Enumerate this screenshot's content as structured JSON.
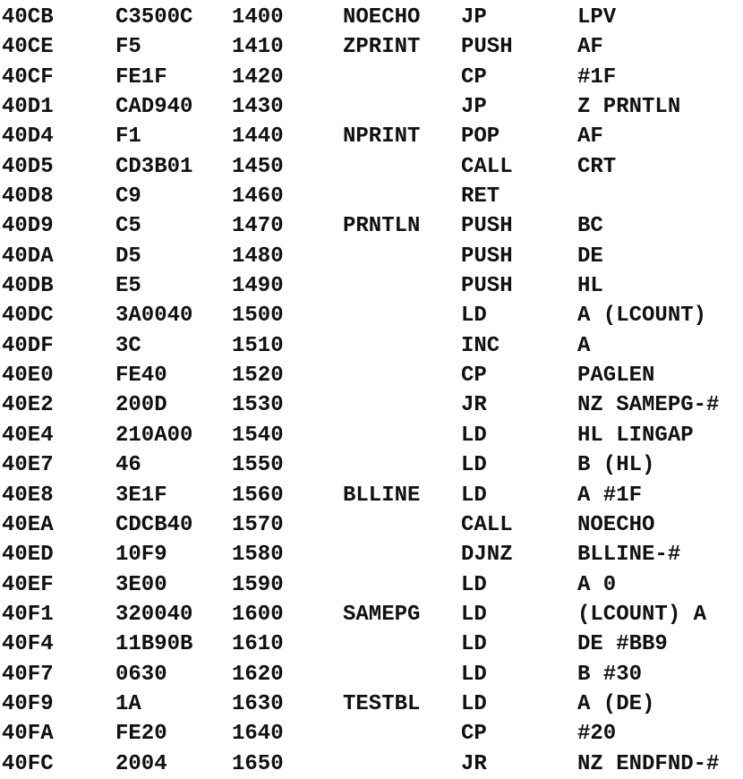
{
  "listing": [
    {
      "addr": "40CB",
      "code": "C3500C",
      "line": "1400",
      "label": "NOECHO",
      "op": "JP",
      "arg": "LPV"
    },
    {
      "addr": "40CE",
      "code": "F5",
      "line": "1410",
      "label": "ZPRINT",
      "op": "PUSH",
      "arg": "AF"
    },
    {
      "addr": "40CF",
      "code": "FE1F",
      "line": "1420",
      "label": "",
      "op": "CP",
      "arg": "#1F"
    },
    {
      "addr": "40D1",
      "code": "CAD940",
      "line": "1430",
      "label": "",
      "op": "JP",
      "arg": "Z PRNTLN"
    },
    {
      "addr": "40D4",
      "code": "F1",
      "line": "1440",
      "label": "NPRINT",
      "op": "POP",
      "arg": "AF"
    },
    {
      "addr": "40D5",
      "code": "CD3B01",
      "line": "1450",
      "label": "",
      "op": "CALL",
      "arg": "CRT"
    },
    {
      "addr": "40D8",
      "code": "C9",
      "line": "1460",
      "label": "",
      "op": "RET",
      "arg": ""
    },
    {
      "addr": "40D9",
      "code": "C5",
      "line": "1470",
      "label": "PRNTLN",
      "op": "PUSH",
      "arg": "BC"
    },
    {
      "addr": "40DA",
      "code": "D5",
      "line": "1480",
      "label": "",
      "op": "PUSH",
      "arg": "DE"
    },
    {
      "addr": "40DB",
      "code": "E5",
      "line": "1490",
      "label": "",
      "op": "PUSH",
      "arg": "HL"
    },
    {
      "addr": "40DC",
      "code": "3A0040",
      "line": "1500",
      "label": "",
      "op": "LD",
      "arg": "A (LCOUNT)"
    },
    {
      "addr": "40DF",
      "code": "3C",
      "line": "1510",
      "label": "",
      "op": "INC",
      "arg": "A"
    },
    {
      "addr": "40E0",
      "code": "FE40",
      "line": "1520",
      "label": "",
      "op": "CP",
      "arg": "PAGLEN"
    },
    {
      "addr": "40E2",
      "code": "200D",
      "line": "1530",
      "label": "",
      "op": "JR",
      "arg": "NZ SAMEPG-#"
    },
    {
      "addr": "40E4",
      "code": "210A00",
      "line": "1540",
      "label": "",
      "op": "LD",
      "arg": "HL LINGAP"
    },
    {
      "addr": "40E7",
      "code": "46",
      "line": "1550",
      "label": "",
      "op": "LD",
      "arg": "B (HL)"
    },
    {
      "addr": "40E8",
      "code": "3E1F",
      "line": "1560",
      "label": "BLLINE",
      "op": "LD",
      "arg": "A #1F"
    },
    {
      "addr": "40EA",
      "code": "CDCB40",
      "line": "1570",
      "label": "",
      "op": "CALL",
      "arg": "NOECHO"
    },
    {
      "addr": "40ED",
      "code": "10F9",
      "line": "1580",
      "label": "",
      "op": "DJNZ",
      "arg": "BLLINE-#"
    },
    {
      "addr": "40EF",
      "code": "3E00",
      "line": "1590",
      "label": "",
      "op": "LD",
      "arg": "A 0"
    },
    {
      "addr": "40F1",
      "code": "320040",
      "line": "1600",
      "label": "SAMEPG",
      "op": "LD",
      "arg": "(LCOUNT) A"
    },
    {
      "addr": "40F4",
      "code": "11B90B",
      "line": "1610",
      "label": "",
      "op": "LD",
      "arg": "DE #BB9"
    },
    {
      "addr": "40F7",
      "code": "0630",
      "line": "1620",
      "label": "",
      "op": "LD",
      "arg": "B #30"
    },
    {
      "addr": "40F9",
      "code": "1A",
      "line": "1630",
      "label": "TESTBL",
      "op": "LD",
      "arg": "A (DE)"
    },
    {
      "addr": "40FA",
      "code": "FE20",
      "line": "1640",
      "label": "",
      "op": "CP",
      "arg": "#20"
    },
    {
      "addr": "40FC",
      "code": "2004",
      "line": "1650",
      "label": "",
      "op": "JR",
      "arg": "NZ ENDFND-#"
    }
  ]
}
